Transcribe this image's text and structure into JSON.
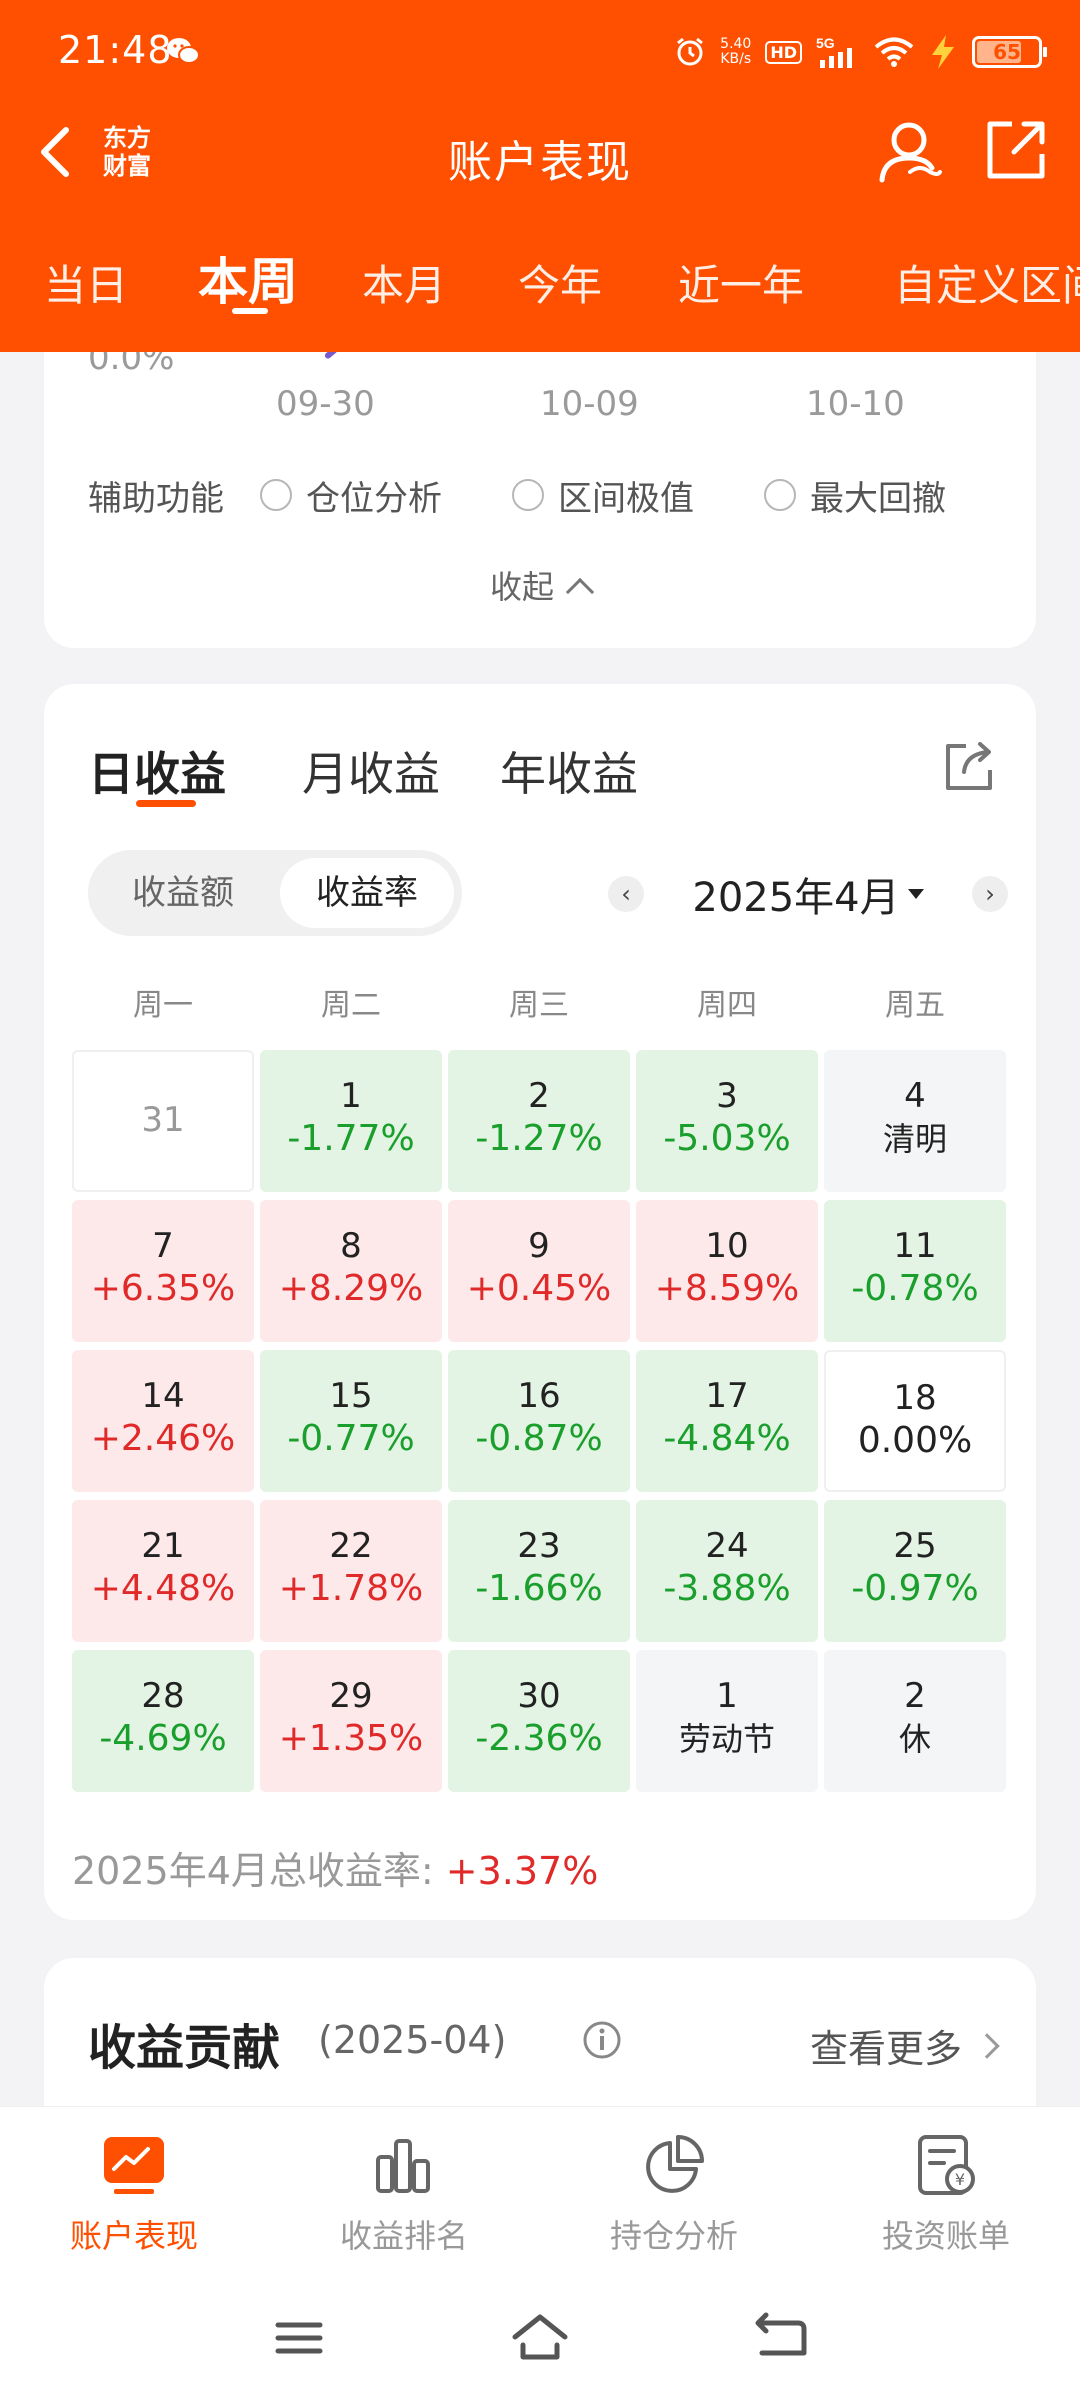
{
  "status": {
    "time": "21:48",
    "speed_top": "5.40",
    "speed_unit": "KB/s",
    "hd": "HD",
    "network": "5G",
    "battery": "65"
  },
  "nav": {
    "title": "账户表现",
    "logo_line1": "东方",
    "logo_line2": "财富"
  },
  "period_tabs": [
    "当日",
    "本周",
    "本月",
    "今年",
    "近一年",
    "自定义区间"
  ],
  "chart_partial": {
    "y_tick": "0.0%",
    "x_ticks": [
      "09-30",
      "10-09",
      "10-10"
    ]
  },
  "aux": {
    "label": "辅助功能",
    "options": [
      "仓位分析",
      "区间极值",
      "最大回撤"
    ]
  },
  "collapse_label": "收起",
  "returns": {
    "tabs": [
      "日收益",
      "月收益",
      "年收益"
    ],
    "toggle": [
      "收益额",
      "收益率"
    ],
    "month": "2025年4月",
    "weekdays": [
      "周一",
      "周二",
      "周三",
      "周四",
      "周五"
    ],
    "cells": [
      {
        "d": "31",
        "v": "",
        "t": "blank"
      },
      {
        "d": "1",
        "v": "-1.77%",
        "t": "down"
      },
      {
        "d": "2",
        "v": "-1.27%",
        "t": "down"
      },
      {
        "d": "3",
        "v": "-5.03%",
        "t": "down"
      },
      {
        "d": "4",
        "v": "清明",
        "t": "holiday"
      },
      {
        "d": "7",
        "v": "+6.35%",
        "t": "up"
      },
      {
        "d": "8",
        "v": "+8.29%",
        "t": "up"
      },
      {
        "d": "9",
        "v": "+0.45%",
        "t": "up"
      },
      {
        "d": "10",
        "v": "+8.59%",
        "t": "up"
      },
      {
        "d": "11",
        "v": "-0.78%",
        "t": "down"
      },
      {
        "d": "14",
        "v": "+2.46%",
        "t": "up"
      },
      {
        "d": "15",
        "v": "-0.77%",
        "t": "down"
      },
      {
        "d": "16",
        "v": "-0.87%",
        "t": "down"
      },
      {
        "d": "17",
        "v": "-4.84%",
        "t": "down"
      },
      {
        "d": "18",
        "v": "0.00%",
        "t": "flat"
      },
      {
        "d": "21",
        "v": "+4.48%",
        "t": "up"
      },
      {
        "d": "22",
        "v": "+1.78%",
        "t": "up"
      },
      {
        "d": "23",
        "v": "-1.66%",
        "t": "down"
      },
      {
        "d": "24",
        "v": "-3.88%",
        "t": "down"
      },
      {
        "d": "25",
        "v": "-0.97%",
        "t": "down"
      },
      {
        "d": "28",
        "v": "-4.69%",
        "t": "down"
      },
      {
        "d": "29",
        "v": "+1.35%",
        "t": "up"
      },
      {
        "d": "30",
        "v": "-2.36%",
        "t": "down"
      },
      {
        "d": "1",
        "v": "劳动节",
        "t": "holiday"
      },
      {
        "d": "2",
        "v": "休",
        "t": "holiday"
      }
    ],
    "total_label": "2025年4月总收益率:",
    "total_value": "+3.37%"
  },
  "contribution": {
    "title": "收益贡献",
    "date": "(2025-04)",
    "more": "查看更多"
  },
  "bottom_nav": [
    "账户表现",
    "收益排名",
    "持仓分析",
    "投资账单"
  ],
  "colors": {
    "brand": "#fe5000",
    "up": "#e02a2a",
    "down": "#1a9e2c"
  }
}
